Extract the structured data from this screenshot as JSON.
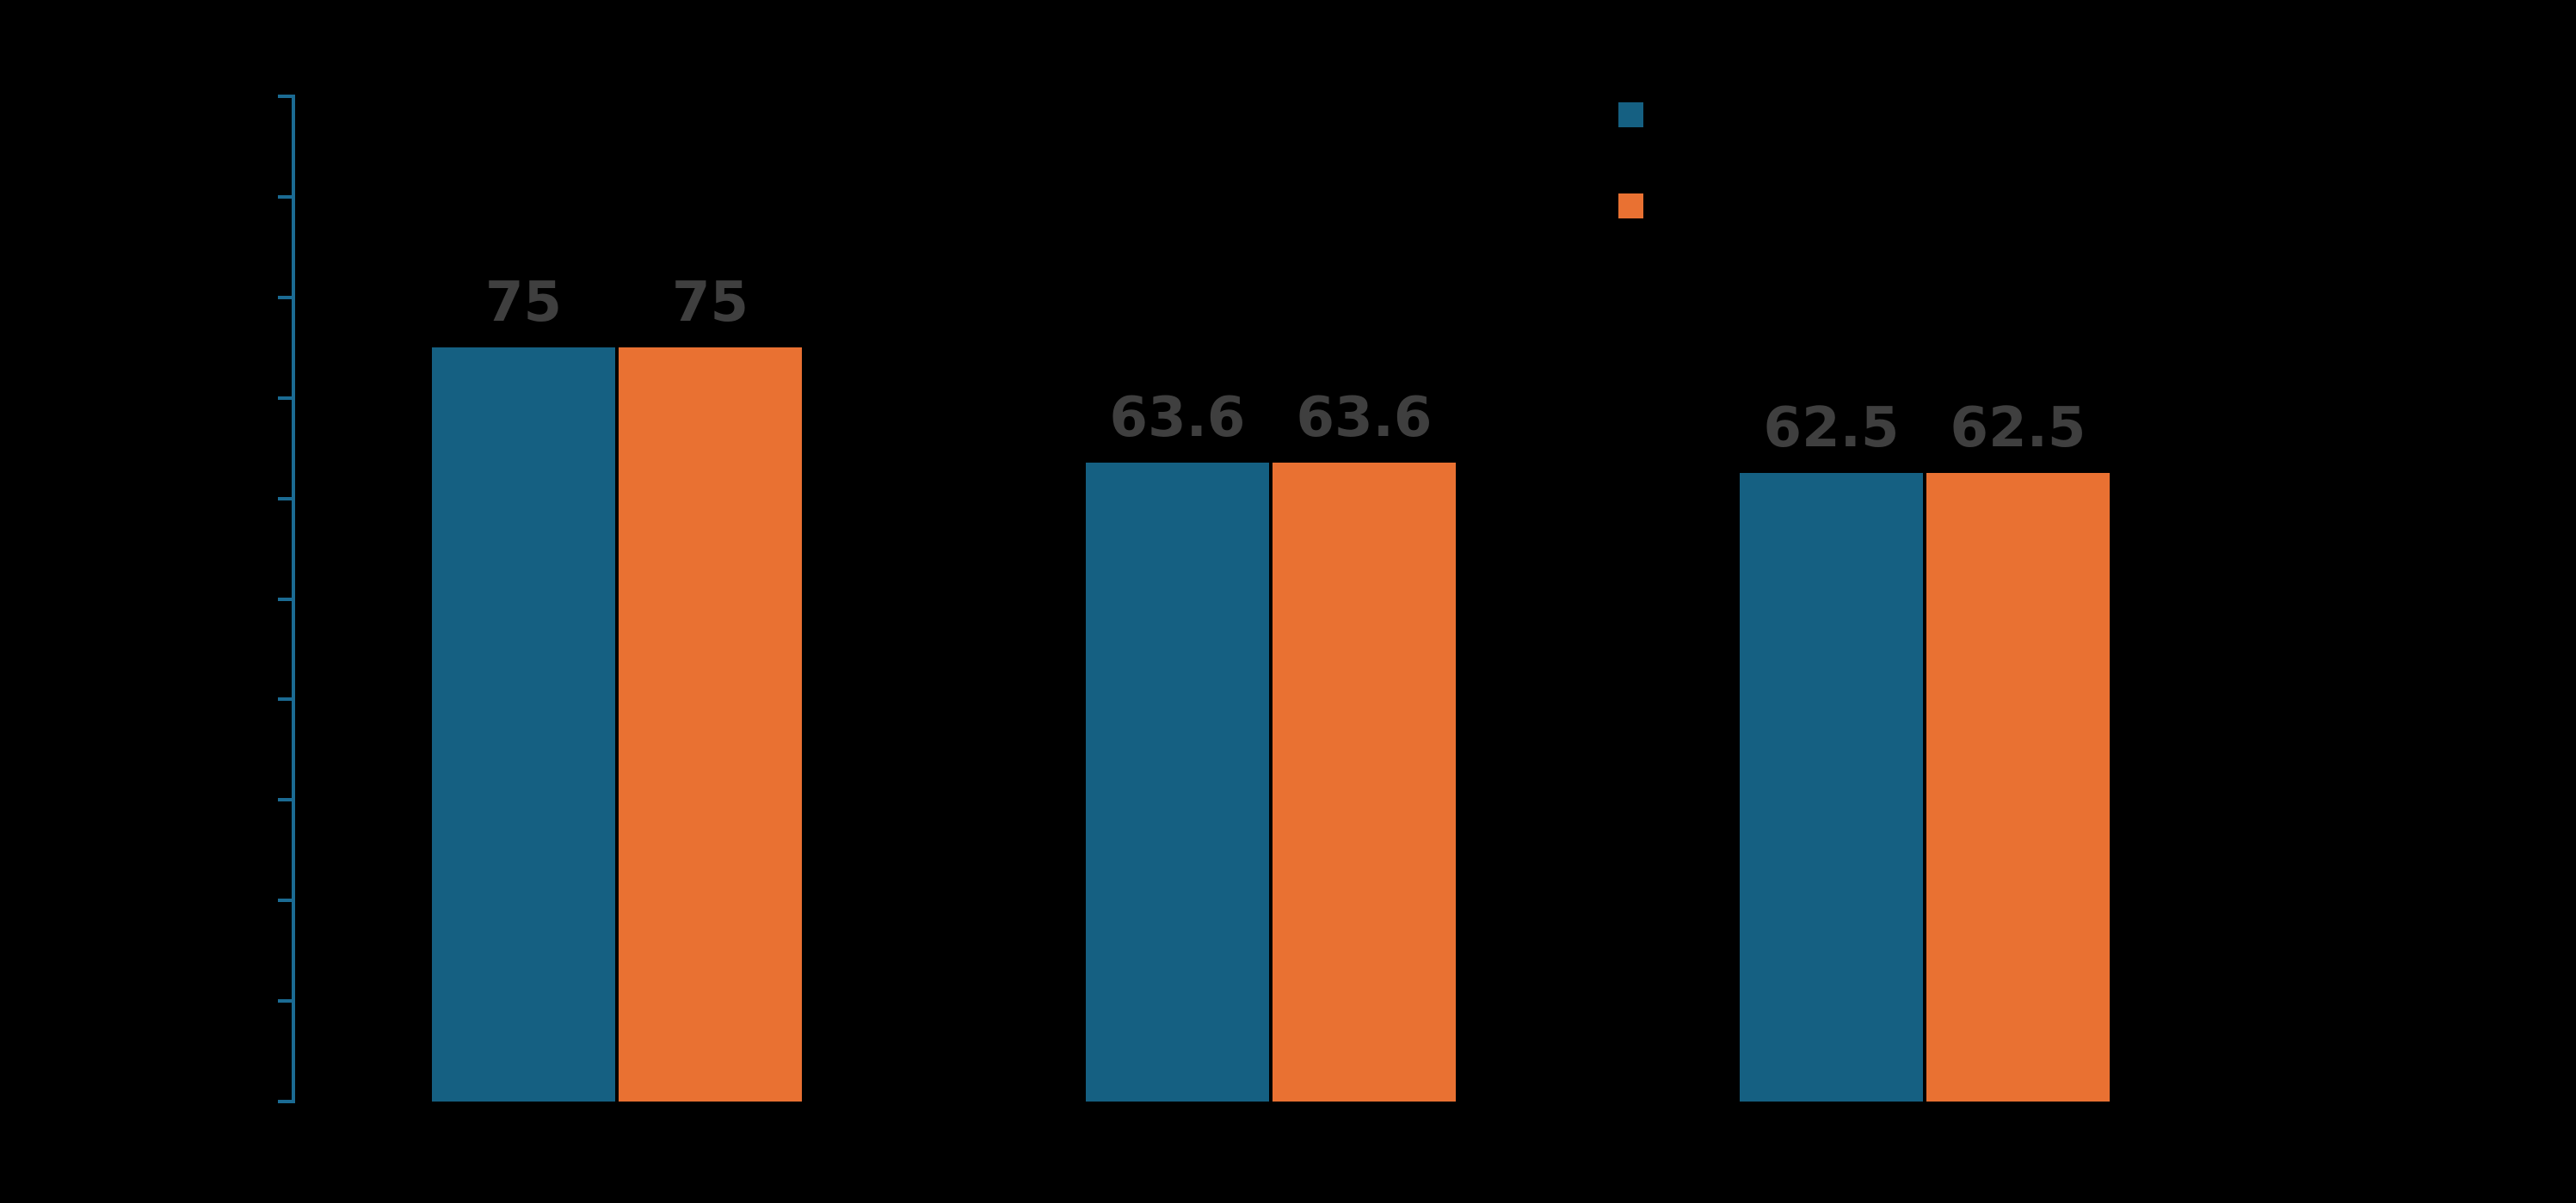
{
  "chart_data": {
    "type": "bar",
    "title": "",
    "categories": [
      "",
      "",
      ""
    ],
    "series": [
      {
        "name": "",
        "color": "#156082",
        "values": [
          75,
          63.6,
          62.5
        ],
        "value_labels": [
          "75",
          "63.6",
          "62.5"
        ]
      },
      {
        "name": "",
        "color": "#E97132",
        "values": [
          75,
          63.6,
          62.5
        ],
        "value_labels": [
          "75",
          "63.6",
          "62.5"
        ]
      }
    ],
    "ylim": [
      0,
      100
    ],
    "yticks": [
      0,
      10,
      20,
      30,
      40,
      50,
      60,
      70,
      80,
      90,
      100
    ],
    "ytick_labels_visible": false,
    "xtick_labels_visible": false,
    "grid": false,
    "legend_position": "top-right",
    "colors": {
      "background": "#000000",
      "axis": "#1B6B93",
      "value_label": "#3F3F3F",
      "series_blue": "#156082",
      "series_orange": "#E97132"
    }
  }
}
